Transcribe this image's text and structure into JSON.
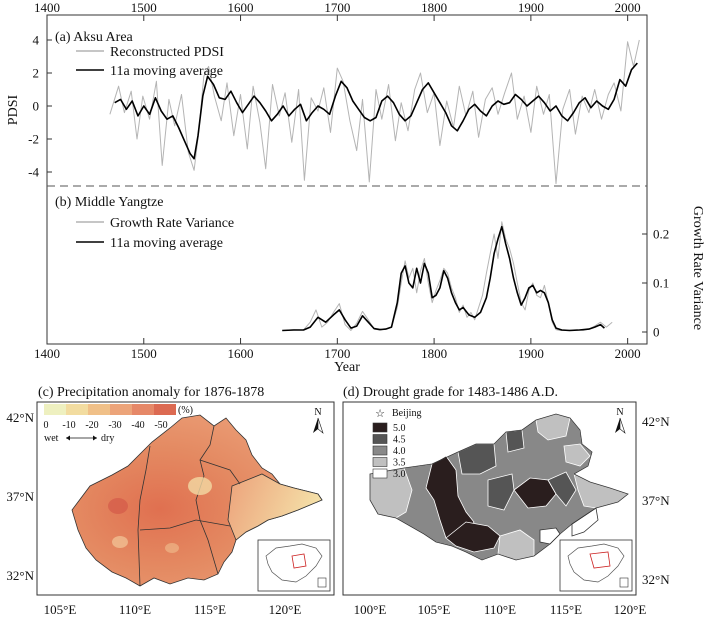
{
  "chart_data": [
    {
      "type": "line",
      "panel": "(a)",
      "title": "(a) Aksu Area",
      "ylabel": "PDSI",
      "xlim": [
        1400,
        2020
      ],
      "ylim": [
        -5,
        5
      ],
      "xticks": [
        1400,
        1500,
        1600,
        1700,
        1800,
        1900,
        2000
      ],
      "yticks": [
        -4,
        -2,
        0,
        2,
        4
      ],
      "legend": "top-left",
      "series": [
        {
          "name": "Reconstructed PDSI",
          "color": "#b4b4b4",
          "x": [
            1465,
            1474,
            1480,
            1487,
            1493,
            1499,
            1506,
            1513,
            1519,
            1526,
            1532,
            1539,
            1546,
            1552,
            1557,
            1562,
            1567,
            1573,
            1580,
            1586,
            1593,
            1600,
            1607,
            1613,
            1620,
            1626,
            1633,
            1640,
            1646,
            1653,
            1660,
            1666,
            1673,
            1680,
            1686,
            1693,
            1700,
            1706,
            1713,
            1720,
            1726,
            1733,
            1740,
            1746,
            1753,
            1760,
            1766,
            1773,
            1780,
            1786,
            1793,
            1800,
            1806,
            1813,
            1820,
            1826,
            1833,
            1840,
            1846,
            1853,
            1860,
            1866,
            1873,
            1880,
            1886,
            1893,
            1900,
            1906,
            1913,
            1919,
            1926,
            1933,
            1940,
            1946,
            1953,
            1960,
            1966,
            1973,
            1980,
            1986,
            1993,
            2000,
            2006,
            2012
          ],
          "values": [
            -0.5,
            1.2,
            -0.4,
            0.9,
            -2.0,
            0.6,
            -0.8,
            1.5,
            -3.6,
            0.4,
            -1.2,
            0.7,
            -2.8,
            -3.9,
            -1.5,
            1.8,
            2.4,
            0.6,
            -0.9,
            1.4,
            -1.8,
            0.7,
            -2.6,
            1.2,
            -1.0,
            -3.8,
            1.3,
            -0.6,
            0.8,
            -2.2,
            1.0,
            -4.5,
            0.5,
            -0.3,
            1.1,
            -1.6,
            2.3,
            1.5,
            -0.9,
            -2.7,
            0.4,
            -4.6,
            1.0,
            -0.8,
            1.3,
            -2.1,
            0.2,
            -1.5,
            1.0,
            2.0,
            -0.4,
            0.8,
            -2.4,
            0.3,
            -1.3,
            1.2,
            -0.6,
            0.9,
            -1.9,
            0.4,
            1.1,
            -0.5,
            0.8,
            2.0,
            -0.8,
            0.6,
            -1.6,
            1.2,
            -0.5,
            0.7,
            -4.7,
            -0.2,
            1.0,
            -1.7,
            0.6,
            -0.4,
            1.0,
            -0.8,
            0.7,
            1.4,
            -0.3,
            3.9,
            2.4,
            4.0
          ]
        },
        {
          "name": "11a moving average",
          "color": "#000000",
          "x": [
            1470,
            1476,
            1482,
            1488,
            1494,
            1500,
            1506,
            1512,
            1518,
            1524,
            1530,
            1536,
            1542,
            1548,
            1552,
            1556,
            1561,
            1566,
            1572,
            1578,
            1584,
            1590,
            1596,
            1602,
            1608,
            1614,
            1620,
            1626,
            1632,
            1638,
            1644,
            1650,
            1656,
            1662,
            1668,
            1674,
            1680,
            1686,
            1692,
            1698,
            1704,
            1710,
            1716,
            1722,
            1728,
            1734,
            1740,
            1746,
            1752,
            1758,
            1764,
            1770,
            1776,
            1782,
            1788,
            1794,
            1800,
            1806,
            1812,
            1818,
            1824,
            1830,
            1836,
            1842,
            1848,
            1854,
            1860,
            1866,
            1872,
            1878,
            1884,
            1890,
            1896,
            1902,
            1908,
            1914,
            1920,
            1926,
            1932,
            1938,
            1944,
            1950,
            1956,
            1962,
            1968,
            1974,
            1980,
            1986,
            1992,
            1998,
            2004,
            2010
          ],
          "values": [
            0.2,
            0.4,
            -0.2,
            0.3,
            -0.6,
            0.0,
            -0.5,
            0.5,
            -0.3,
            -0.8,
            -0.6,
            -1.3,
            -2.1,
            -2.9,
            -3.2,
            -1.8,
            0.6,
            1.8,
            1.3,
            0.5,
            0.4,
            0.9,
            0.2,
            -0.4,
            0.1,
            0.6,
            0.2,
            -0.3,
            -0.9,
            -0.5,
            0.0,
            -0.6,
            -0.2,
            0.1,
            -0.9,
            -0.4,
            0.0,
            -0.2,
            -0.5,
            0.6,
            1.5,
            1.1,
            0.3,
            -0.2,
            -0.7,
            -0.9,
            -0.7,
            0.3,
            0.6,
            0.2,
            -0.5,
            -0.9,
            -0.6,
            0.2,
            1.0,
            1.4,
            0.8,
            0.2,
            -0.4,
            -1.2,
            -1.5,
            -0.9,
            -0.2,
            0.1,
            -0.3,
            -0.6,
            0.0,
            0.3,
            0.1,
            0.2,
            0.7,
            0.4,
            0.0,
            0.3,
            0.6,
            0.2,
            -0.3,
            0.0,
            -0.6,
            -0.9,
            -0.4,
            0.2,
            0.5,
            -0.1,
            0.3,
            0.0,
            -0.2,
            0.4,
            1.6,
            1.2,
            2.2,
            2.6
          ]
        }
      ]
    },
    {
      "type": "line",
      "panel": "(b)",
      "title": "(b) Middle Yangtze",
      "xlabel": "Year",
      "ylabel": "Growth Rate Variance",
      "xlim": [
        1400,
        2020
      ],
      "ylim": [
        0,
        0.25
      ],
      "xticks": [
        1400,
        1500,
        1600,
        1700,
        1800,
        1900,
        2000
      ],
      "yticks": [
        0,
        0.1,
        0.2
      ],
      "legend": "top-left",
      "series": [
        {
          "name": "Growth Rate Variance",
          "color": "#b4b4b4",
          "x": [
            1645,
            1655,
            1665,
            1672,
            1678,
            1684,
            1690,
            1696,
            1702,
            1708,
            1714,
            1720,
            1726,
            1732,
            1738,
            1744,
            1750,
            1756,
            1762,
            1766,
            1770,
            1774,
            1778,
            1782,
            1786,
            1790,
            1794,
            1798,
            1802,
            1806,
            1810,
            1814,
            1818,
            1822,
            1826,
            1830,
            1834,
            1838,
            1842,
            1846,
            1850,
            1854,
            1858,
            1862,
            1866,
            1870,
            1874,
            1878,
            1882,
            1886,
            1890,
            1894,
            1898,
            1902,
            1906,
            1910,
            1914,
            1918,
            1922,
            1926,
            1930,
            1936,
            1942,
            1948,
            1954,
            1960,
            1966,
            1972,
            1978,
            1984
          ],
          "values": [
            0.003,
            0.005,
            0.004,
            0.02,
            0.045,
            0.01,
            0.02,
            0.04,
            0.058,
            0.015,
            0.003,
            0.018,
            0.042,
            0.025,
            0.006,
            0.004,
            0.006,
            0.01,
            0.05,
            0.1,
            0.145,
            0.11,
            0.13,
            0.08,
            0.125,
            0.15,
            0.1,
            0.06,
            0.085,
            0.105,
            0.13,
            0.12,
            0.09,
            0.07,
            0.04,
            0.055,
            0.03,
            0.04,
            0.025,
            0.05,
            0.075,
            0.12,
            0.16,
            0.2,
            0.15,
            0.225,
            0.19,
            0.17,
            0.14,
            0.1,
            0.06,
            0.045,
            0.085,
            0.1,
            0.075,
            0.07,
            0.095,
            0.06,
            0.02,
            0.005,
            0.003,
            0.003,
            0.004,
            0.005,
            0.003,
            0.006,
            0.012,
            0.02,
            0.01,
            0.02
          ]
        },
        {
          "name": "11a moving average",
          "color": "#000000",
          "x": [
            1643,
            1655,
            1665,
            1672,
            1680,
            1688,
            1696,
            1702,
            1708,
            1714,
            1720,
            1726,
            1732,
            1738,
            1744,
            1750,
            1756,
            1762,
            1766,
            1770,
            1774,
            1778,
            1782,
            1786,
            1790,
            1794,
            1798,
            1802,
            1806,
            1810,
            1814,
            1818,
            1822,
            1826,
            1830,
            1836,
            1842,
            1848,
            1854,
            1858,
            1862,
            1866,
            1870,
            1874,
            1878,
            1882,
            1886,
            1890,
            1894,
            1898,
            1902,
            1906,
            1910,
            1914,
            1918,
            1922,
            1926,
            1932,
            1940,
            1950,
            1960,
            1966,
            1972,
            1976
          ],
          "values": [
            0.003,
            0.004,
            0.004,
            0.01,
            0.03,
            0.02,
            0.035,
            0.045,
            0.025,
            0.008,
            0.012,
            0.033,
            0.02,
            0.007,
            0.005,
            0.006,
            0.01,
            0.06,
            0.12,
            0.135,
            0.1,
            0.09,
            0.13,
            0.1,
            0.14,
            0.12,
            0.07,
            0.075,
            0.09,
            0.125,
            0.11,
            0.08,
            0.06,
            0.045,
            0.05,
            0.035,
            0.03,
            0.04,
            0.07,
            0.11,
            0.16,
            0.19,
            0.215,
            0.18,
            0.15,
            0.11,
            0.08,
            0.055,
            0.07,
            0.09,
            0.095,
            0.08,
            0.085,
            0.08,
            0.06,
            0.025,
            0.008,
            0.004,
            0.003,
            0.004,
            0.006,
            0.01,
            0.015,
            0.008
          ]
        }
      ]
    },
    {
      "type": "map",
      "panel": "(c)",
      "title": "(c) Precipitation anomaly for 1876-1878",
      "legend": {
        "unit": "(%)",
        "ticks": [
          "0",
          "-10",
          "-20",
          "-30",
          "-40",
          "-50"
        ],
        "wet": "wet",
        "dry": "dry",
        "colors": [
          "#eef0c0",
          "#f2dca0",
          "#f0c088",
          "#eca47a",
          "#e68868",
          "#dc6a52"
        ]
      },
      "lat_labels": [
        "42°N",
        "37°N",
        "32°N"
      ],
      "lon_labels": [
        "105°E",
        "110°E",
        "115°E",
        "120°E"
      ],
      "north": "N"
    },
    {
      "type": "map",
      "panel": "(d)",
      "title": "(d) Drought grade for 1483-1486 A.D.",
      "legend": {
        "marker": "Beijing",
        "grades": [
          "5.0",
          "4.5",
          "4.0",
          "3.5",
          "3.0"
        ],
        "colors": [
          "#2a1e1e",
          "#555555",
          "#888888",
          "#c0c0c0",
          "#ffffff"
        ]
      },
      "lat_labels": [
        "42°N",
        "37°N",
        "32°N"
      ],
      "lon_labels": [
        "100°E",
        "105°E",
        "110°E",
        "115°E",
        "120°E"
      ],
      "north": "N"
    }
  ]
}
